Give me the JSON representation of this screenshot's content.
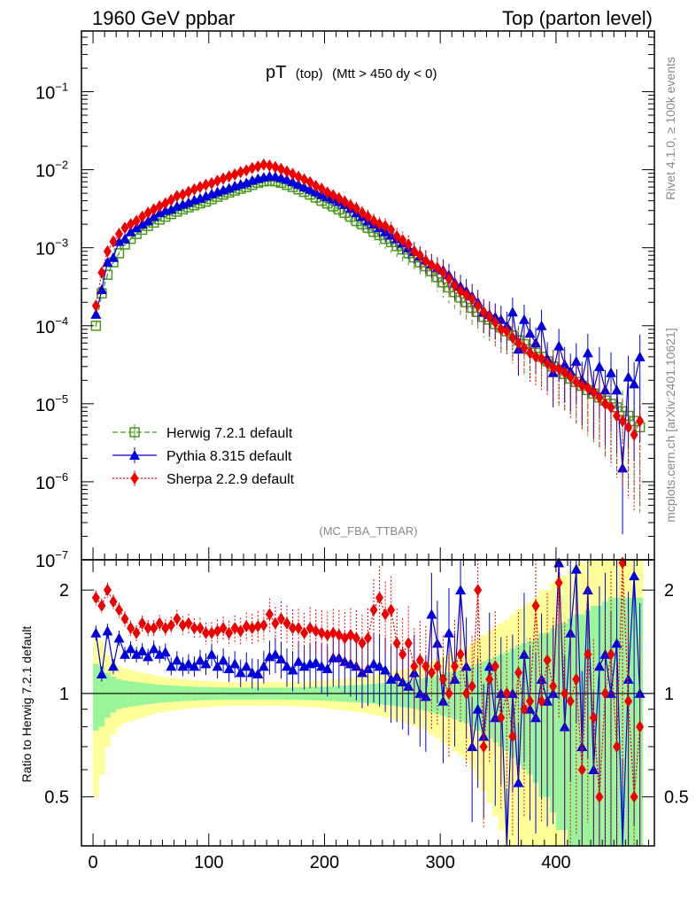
{
  "header": {
    "left": "1960 GeV ppbar",
    "right": "Top (parton level)"
  },
  "plot_title": {
    "main": "pT",
    "sub": "(top)",
    "cut": "(Mtt > 450 dy < 0)"
  },
  "analysis_label": "(MC_FBA_TTBAR)",
  "side_labels": {
    "rivet": "Rivet 4.1.0, ≥ 100k events",
    "mcplots": "mcplots.cern.ch [arXiv:2401.10621]"
  },
  "main_y_ticks": [
    "10",
    "10",
    "10",
    "10",
    "10",
    "10",
    "10"
  ],
  "main_y_exponents": [
    "−1",
    "−2",
    "−3",
    "−4",
    "−5",
    "−6",
    "−7"
  ],
  "ratio_y_ticks": [
    "2",
    "1",
    "0.5"
  ],
  "ratio_ylabel": "Ratio to Herwig 7.2.1 default",
  "x_ticks": [
    "0",
    "100",
    "200",
    "300",
    "400"
  ],
  "colors": {
    "herwig": "#4a9a1a",
    "pythia": "#0000dd",
    "sherpa": "#ee0000",
    "band_inner": "#99f599",
    "band_outer": "#ffff99"
  },
  "chart_data": {
    "type": "line",
    "title": "pT (top) (Mtt > 450 dy < 0)",
    "xlabel": "",
    "ylabel": "",
    "xlim": [
      -10,
      485
    ],
    "ylim": [
      1e-07,
      0.6
    ],
    "yscale": "log",
    "ratio_ylim": [
      0.36,
      2.45
    ],
    "x": [
      2.5,
      7.5,
      12.5,
      17.5,
      22.5,
      27.5,
      32.5,
      37.5,
      42.5,
      47.5,
      52.5,
      57.5,
      62.5,
      67.5,
      72.5,
      77.5,
      82.5,
      87.5,
      92.5,
      97.5,
      102.5,
      107.5,
      112.5,
      117.5,
      122.5,
      127.5,
      132.5,
      137.5,
      142.5,
      147.5,
      152.5,
      157.5,
      162.5,
      167.5,
      172.5,
      177.5,
      182.5,
      187.5,
      192.5,
      197.5,
      202.5,
      207.5,
      212.5,
      217.5,
      222.5,
      227.5,
      232.5,
      237.5,
      242.5,
      247.5,
      252.5,
      257.5,
      262.5,
      267.5,
      272.5,
      277.5,
      282.5,
      287.5,
      292.5,
      297.5,
      302.5,
      307.5,
      312.5,
      317.5,
      322.5,
      327.5,
      332.5,
      337.5,
      342.5,
      347.5,
      352.5,
      357.5,
      362.5,
      367.5,
      372.5,
      377.5,
      382.5,
      387.5,
      392.5,
      397.5,
      402.5,
      407.5,
      412.5,
      417.5,
      422.5,
      427.5,
      432.5,
      437.5,
      442.5,
      447.5,
      452.5,
      457.5,
      462.5,
      467.5,
      472.5
    ],
    "legend": [
      "Herwig 7.2.1 default",
      "Pythia 8.315 default",
      "Sherpa 2.2.9 default"
    ],
    "legend_position": "bottom-left",
    "series": [
      {
        "name": "Herwig 7.2.1 default",
        "marker": "open-square",
        "style": "dashed",
        "values": [
          0.0001,
          0.00026,
          0.00045,
          0.00065,
          0.00085,
          0.0011,
          0.0013,
          0.0015,
          0.0017,
          0.0019,
          0.0021,
          0.0023,
          0.0025,
          0.0027,
          0.0029,
          0.0031,
          0.0033,
          0.0035,
          0.0037,
          0.0039,
          0.0042,
          0.0045,
          0.0048,
          0.0051,
          0.0054,
          0.0057,
          0.006,
          0.0064,
          0.0068,
          0.0071,
          0.0072,
          0.0071,
          0.0068,
          0.0064,
          0.006,
          0.0056,
          0.0052,
          0.0048,
          0.0044,
          0.004,
          0.0037,
          0.0034,
          0.0031,
          0.0028,
          0.0025,
          0.0022,
          0.002,
          0.0018,
          0.0016,
          0.00145,
          0.0013,
          0.00118,
          0.00105,
          0.00095,
          0.00085,
          0.00075,
          0.00065,
          0.00058,
          0.0005,
          0.00042,
          0.00036,
          0.00031,
          0.00027,
          0.00023,
          0.0002,
          0.00017,
          0.00015,
          0.00013,
          0.00012,
          0.000105,
          9.5e-05,
          8.5e-05,
          7.5e-05,
          6.5e-05,
          5.8e-05,
          5e-05,
          4.5e-05,
          4e-05,
          3.5e-05,
          3e-05,
          2.7e-05,
          2.4e-05,
          2.1e-05,
          1.9e-05,
          1.7e-05,
          1.5e-05,
          1.35e-05,
          1.2e-05,
          1.1e-05,
          1e-05,
          9e-06,
          8e-06,
          7e-06,
          6e-06,
          5e-06
        ]
      },
      {
        "name": "Pythia 8.315 default",
        "marker": "filled-triangle",
        "style": "solid",
        "values": [
          0.00014,
          0.00029,
          0.00065,
          0.00075,
          0.0012,
          0.0013,
          0.0016,
          0.0018,
          0.002,
          0.0022,
          0.0025,
          0.0028,
          0.003,
          0.0031,
          0.0034,
          0.0036,
          0.0038,
          0.0041,
          0.0043,
          0.0046,
          0.0049,
          0.0052,
          0.0055,
          0.0058,
          0.0062,
          0.0065,
          0.0068,
          0.0073,
          0.0077,
          0.008,
          0.0083,
          0.0082,
          0.0079,
          0.0075,
          0.007,
          0.0065,
          0.006,
          0.0056,
          0.0052,
          0.0048,
          0.0045,
          0.0042,
          0.0039,
          0.0036,
          0.0032,
          0.0028,
          0.0025,
          0.0022,
          0.002,
          0.0018,
          0.0016,
          0.00145,
          0.0013,
          0.00115,
          0.001,
          0.0009,
          0.00078,
          0.0007,
          0.00062,
          0.00056,
          0.00052,
          0.00045,
          0.00036,
          0.00032,
          0.00028,
          0.00024,
          0.0002,
          0.00015,
          0.00014,
          0.00013,
          0.00012,
          0.0001,
          0.00015,
          5e-05,
          0.00012,
          8e-05,
          6e-05,
          0.0001,
          3.8e-05,
          2.5e-05,
          5.5e-05,
          3.2e-05,
          2.6e-05,
          3.5e-05,
          2e-05,
          4.5e-05,
          1.5e-05,
          3e-05,
          1.5e-05,
          2.5e-05,
          1.5e-05,
          1.5e-06,
          2.2e-05,
          1.8e-05,
          4e-05
        ]
      },
      {
        "name": "Sherpa 2.2.9 default",
        "marker": "filled-diamond",
        "style": "dotted",
        "values": [
          0.00018,
          0.00048,
          0.0009,
          0.0012,
          0.0015,
          0.0018,
          0.002,
          0.0022,
          0.0025,
          0.0028,
          0.0031,
          0.0034,
          0.0037,
          0.0041,
          0.0046,
          0.0048,
          0.0052,
          0.0056,
          0.006,
          0.0064,
          0.0067,
          0.0072,
          0.0077,
          0.0082,
          0.0087,
          0.0093,
          0.0098,
          0.0105,
          0.011,
          0.0116,
          0.0113,
          0.0108,
          0.0102,
          0.0095,
          0.0088,
          0.0081,
          0.0075,
          0.0069,
          0.0062,
          0.0057,
          0.0051,
          0.0047,
          0.0043,
          0.0039,
          0.0035,
          0.0032,
          0.0028,
          0.0025,
          0.0022,
          0.002,
          0.0019,
          0.0017,
          0.0014,
          0.00125,
          0.0011,
          0.0009,
          0.0008,
          0.00068,
          0.0006,
          0.00055,
          0.00048,
          0.0004,
          0.00033,
          0.00028,
          0.00025,
          0.00022,
          0.00018,
          0.00015,
          0.00013,
          0.00011,
          9e-05,
          8.5e-05,
          7e-05,
          6e-05,
          5.2e-05,
          4.5e-05,
          4e-05,
          3.8e-05,
          3.3e-05,
          2.9e-05,
          2.8e-05,
          2.5e-05,
          2.2e-05,
          1.9e-05,
          1.7e-05,
          1.6e-05,
          1.4e-05,
          1.2e-05,
          1e-05,
          9e-06,
          7e-06,
          6e-06,
          5e-06,
          4e-06,
          6e-06
        ]
      }
    ],
    "ratio_series": [
      {
        "name": "Pythia 8.315 default",
        "values": [
          1.5,
          1.14,
          1.52,
          1.2,
          1.45,
          1.3,
          1.35,
          1.3,
          1.33,
          1.28,
          1.35,
          1.3,
          1.32,
          1.2,
          1.25,
          1.2,
          1.22,
          1.2,
          1.25,
          1.22,
          1.3,
          1.2,
          1.25,
          1.18,
          1.22,
          1.15,
          1.2,
          1.15,
          1.14,
          1.2,
          1.28,
          1.3,
          1.26,
          1.2,
          1.17,
          1.24,
          1.2,
          1.22,
          1.23,
          1.2,
          1.18,
          1.27,
          1.27,
          1.24,
          1.22,
          1.2,
          1.15,
          1.18,
          1.22,
          1.2,
          1.17,
          1.1,
          1.12,
          1.08,
          1.05,
          1.15,
          1.0,
          0.98,
          1.7,
          1.4,
          0.95,
          1.5,
          1.1,
          2.0,
          1.2,
          0.7,
          0.9,
          0.75,
          1.2,
          0.85,
          1.0,
          0.36,
          1.0,
          0.55,
          1.3,
          0.9,
          0.85,
          1.1,
          0.95,
          1.0,
          2.4,
          0.8,
          1.5,
          2.3,
          0.7,
          2.0,
          0.6,
          1.2,
          1.3,
          1.0,
          1.4,
          0.36,
          1.1,
          2.2,
          1.0
        ]
      },
      {
        "name": "Sherpa 2.2.9 default",
        "values": [
          1.9,
          1.8,
          2.0,
          1.85,
          1.75,
          1.65,
          1.55,
          1.5,
          1.6,
          1.55,
          1.55,
          1.6,
          1.55,
          1.58,
          1.65,
          1.58,
          1.6,
          1.55,
          1.55,
          1.5,
          1.5,
          1.52,
          1.55,
          1.5,
          1.55,
          1.52,
          1.57,
          1.55,
          1.57,
          1.58,
          1.7,
          1.6,
          1.65,
          1.6,
          1.55,
          1.55,
          1.5,
          1.55,
          1.52,
          1.5,
          1.48,
          1.5,
          1.48,
          1.45,
          1.48,
          1.45,
          1.4,
          1.45,
          1.75,
          1.9,
          1.7,
          1.75,
          1.4,
          1.3,
          1.4,
          1.2,
          1.25,
          1.2,
          1.15,
          1.2,
          1.1,
          1.0,
          1.2,
          1.3,
          1.0,
          1.05,
          2.0,
          0.7,
          1.1,
          1.2,
          0.85,
          1.0,
          0.75,
          1.15,
          0.9,
          0.95,
          1.8,
          0.95,
          1.25,
          1.05,
          2.1,
          1.0,
          0.95,
          1.1,
          0.6,
          1.3,
          0.85,
          0.5,
          1.0,
          1.3,
          0.7,
          2.4,
          0.95,
          0.5,
          0.8
        ]
      }
    ],
    "ratio_band_inner_halfwidth": [
      0.22,
      0.2,
      0.15,
      0.12,
      0.1,
      0.09,
      0.085,
      0.08,
      0.075,
      0.07,
      0.065,
      0.06,
      0.058,
      0.055,
      0.053,
      0.05,
      0.048,
      0.046,
      0.045,
      0.044,
      0.043,
      0.042,
      0.041,
      0.04,
      0.04,
      0.04,
      0.04,
      0.04,
      0.04,
      0.04,
      0.04,
      0.04,
      0.04,
      0.04,
      0.041,
      0.042,
      0.043,
      0.044,
      0.045,
      0.046,
      0.048,
      0.05,
      0.052,
      0.054,
      0.056,
      0.058,
      0.06,
      0.063,
      0.066,
      0.07,
      0.074,
      0.078,
      0.082,
      0.087,
      0.092,
      0.098,
      0.105,
      0.11,
      0.12,
      0.13,
      0.14,
      0.15,
      0.16,
      0.17,
      0.18,
      0.2,
      0.22,
      0.24,
      0.26,
      0.28,
      0.3,
      0.32,
      0.35,
      0.38,
      0.4,
      0.42,
      0.45,
      0.5,
      0.5,
      0.55,
      0.6,
      0.6,
      0.65,
      0.7,
      0.7,
      0.75,
      0.8,
      0.8,
      0.85,
      0.9,
      0.9,
      0.9,
      0.9,
      0.9,
      0.9
    ],
    "ratio_band_outer_halfwidth": [
      0.5,
      0.42,
      0.3,
      0.24,
      0.2,
      0.18,
      0.17,
      0.16,
      0.15,
      0.14,
      0.13,
      0.12,
      0.115,
      0.11,
      0.105,
      0.1,
      0.096,
      0.092,
      0.09,
      0.088,
      0.086,
      0.084,
      0.082,
      0.08,
      0.08,
      0.08,
      0.08,
      0.08,
      0.08,
      0.08,
      0.08,
      0.08,
      0.08,
      0.08,
      0.082,
      0.084,
      0.086,
      0.088,
      0.09,
      0.092,
      0.096,
      0.1,
      0.104,
      0.108,
      0.112,
      0.116,
      0.12,
      0.126,
      0.132,
      0.14,
      0.148,
      0.156,
      0.164,
      0.174,
      0.184,
      0.196,
      0.21,
      0.22,
      0.24,
      0.26,
      0.28,
      0.3,
      0.32,
      0.34,
      0.36,
      0.4,
      0.44,
      0.48,
      0.52,
      0.56,
      0.6,
      0.64,
      0.7,
      0.76,
      0.8,
      0.84,
      0.9,
      1.0,
      1.0,
      1.1,
      1.2,
      1.2,
      1.3,
      1.4,
      1.4,
      1.5,
      1.6,
      1.6,
      1.7,
      1.8,
      1.8,
      1.8,
      1.8,
      1.8,
      1.8
    ]
  }
}
